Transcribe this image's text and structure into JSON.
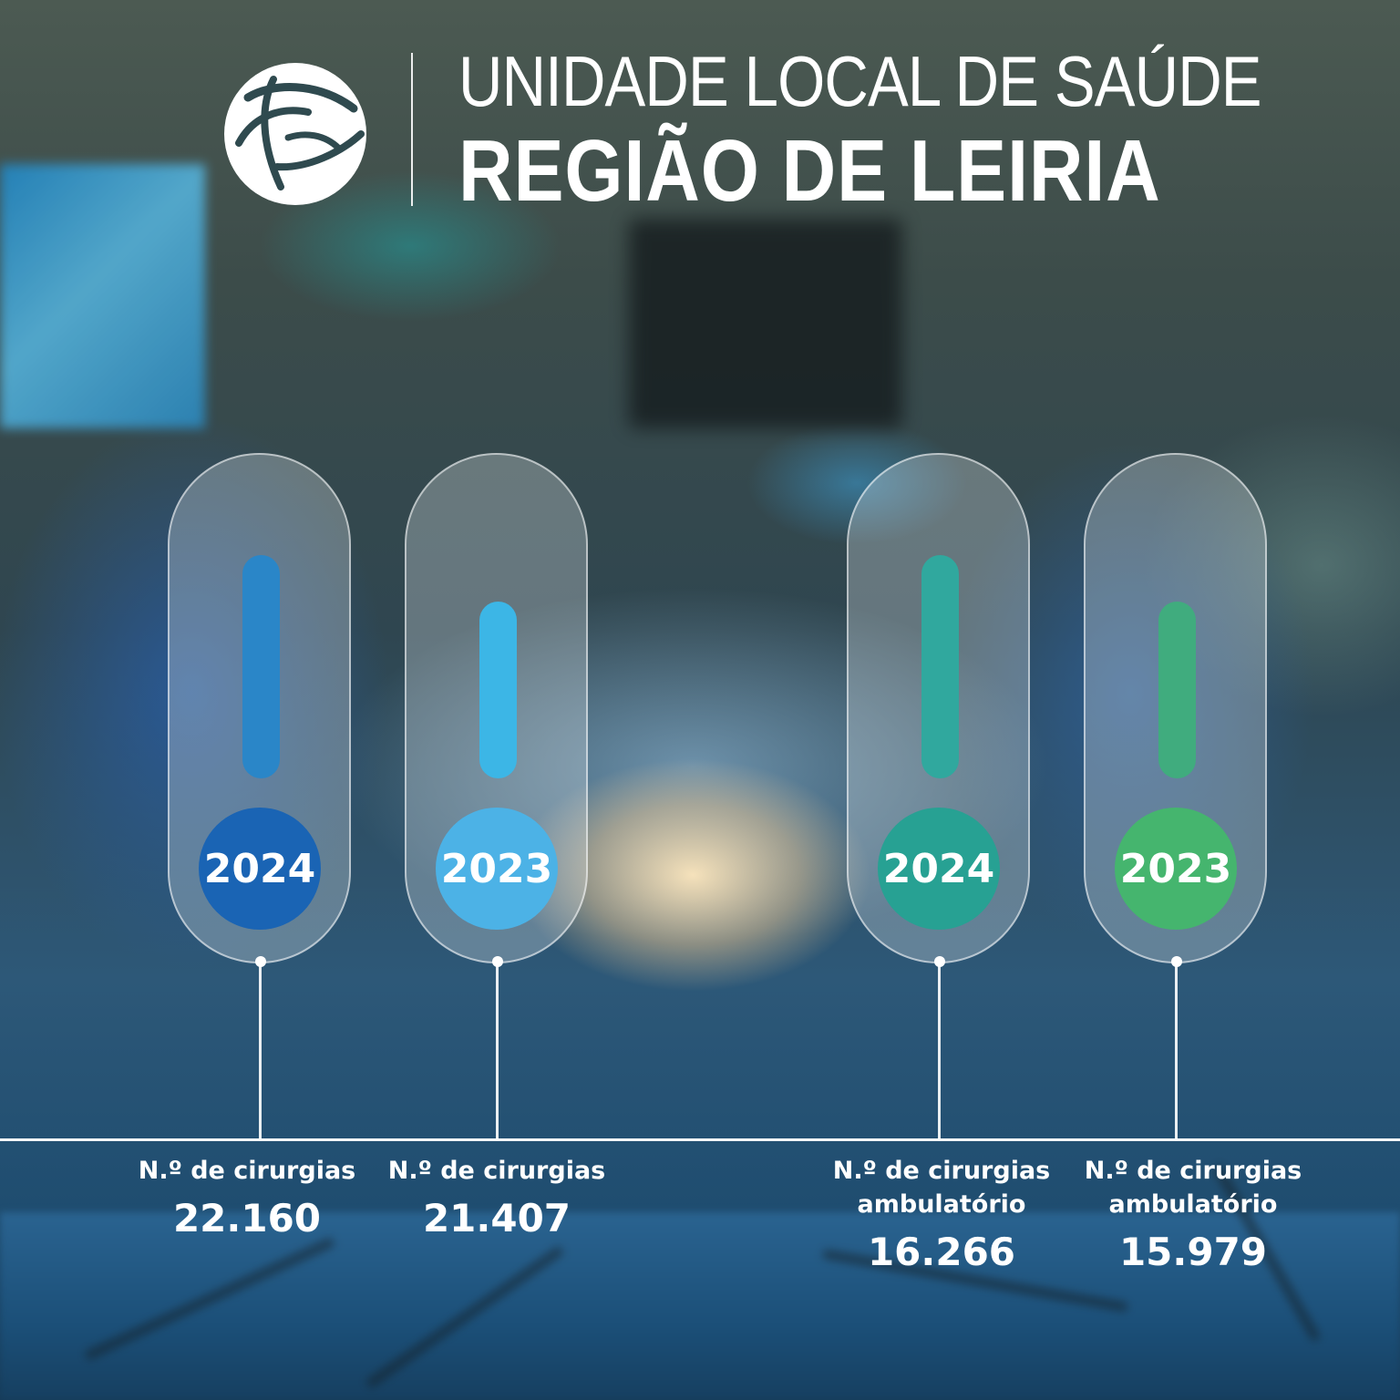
{
  "header": {
    "title_line1": "UNIDADE LOCAL DE SAÚDE",
    "title_line2": "REGIÃO DE LEIRIA"
  },
  "colors": {
    "surgeries_2024": "#1a64b4",
    "surgeries_2023": "#4cb2e6",
    "ambulatory_2024": "#27a193",
    "ambulatory_2023": "#45b56e"
  },
  "stats": [
    {
      "year": "2024",
      "label_line1": "N.º de cirurgias",
      "label_line2": "",
      "value": "22.160"
    },
    {
      "year": "2023",
      "label_line1": "N.º de cirurgias",
      "label_line2": "",
      "value": "21.407"
    },
    {
      "year": "2024",
      "label_line1": "N.º de cirurgias",
      "label_line2": "ambulatório",
      "value": "16.266"
    },
    {
      "year": "2023",
      "label_line1": "N.º de cirurgias",
      "label_line2": "ambulatório",
      "value": "15.979"
    }
  ]
}
